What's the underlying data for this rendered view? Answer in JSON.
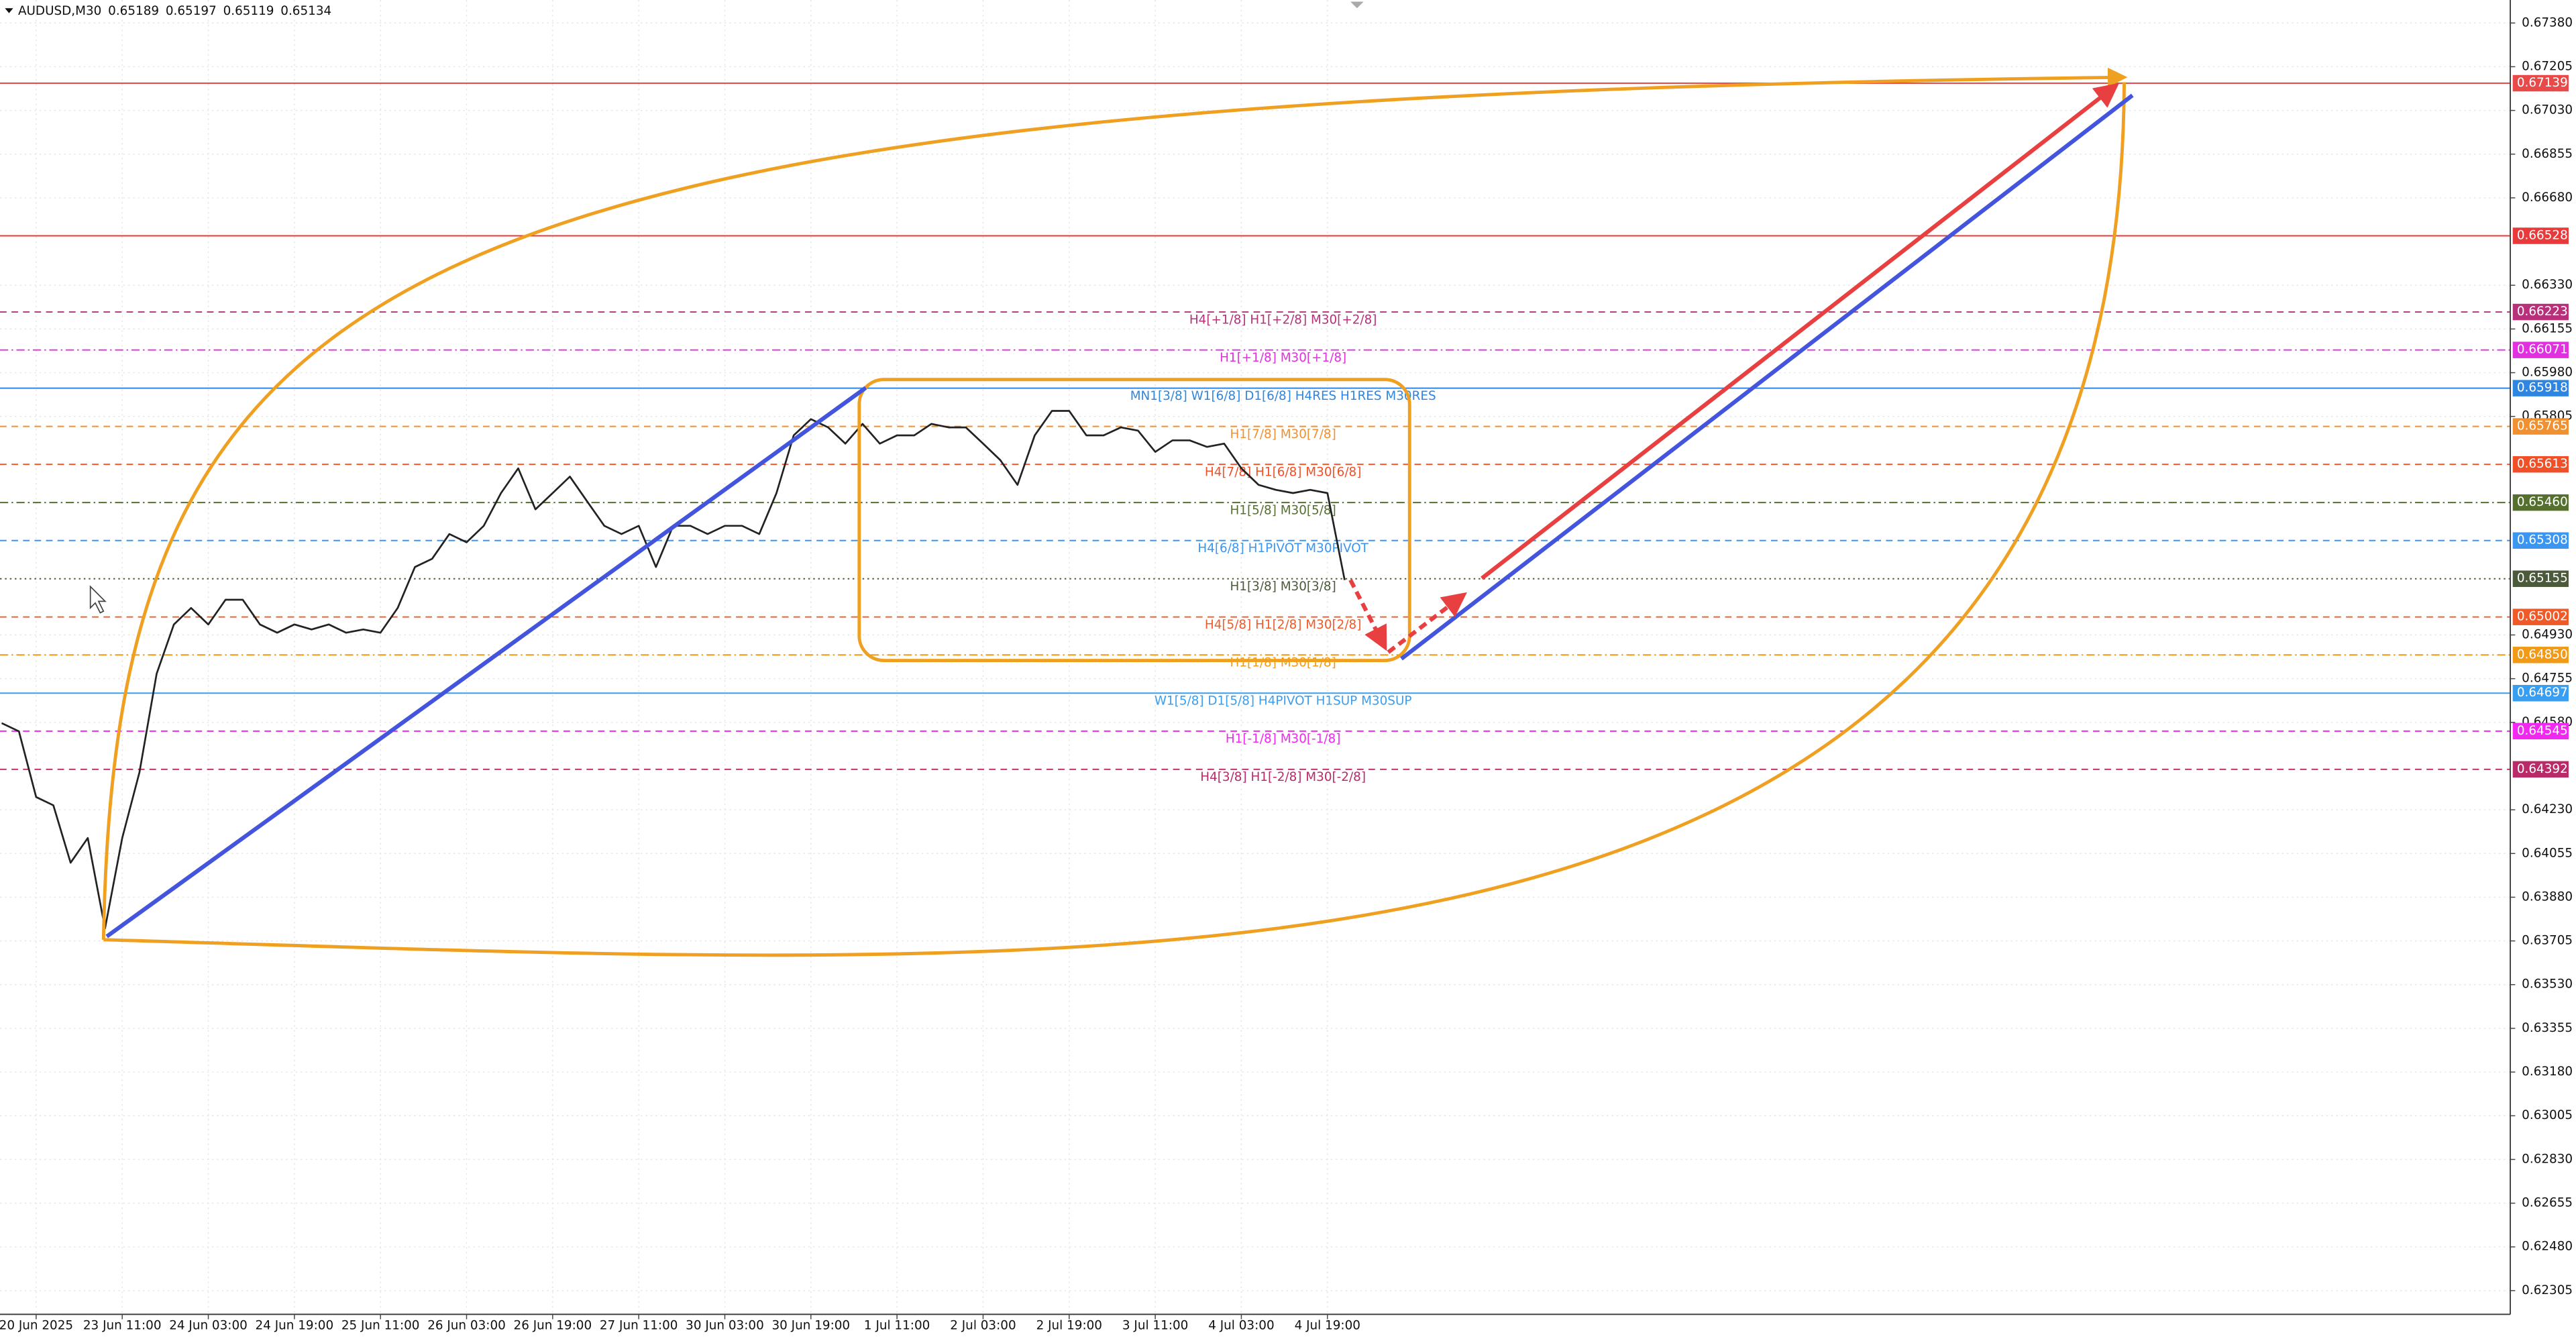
{
  "chart_data": {
    "type": "line",
    "title": "AUDUSD,M30",
    "quote": [
      0.65189,
      0.65197,
      0.65119,
      0.65134
    ],
    "color": "#222222",
    "grid": true,
    "ylim": [
      0.6221,
      0.67472
    ],
    "yticks": [
      {
        "value": 0.6738,
        "label": "0.67380"
      },
      0.67205,
      {
        "value": 0.6703,
        "label": "0.67030"
      },
      0.66855,
      {
        "value": 0.6668,
        "label": "0.66680"
      },
      {
        "value": 0.6633,
        "label": "0.66330"
      },
      0.66155,
      {
        "value": 0.6598,
        "label": "0.65980"
      },
      0.65805,
      {
        "value": 0.6493,
        "label": "0.64930"
      },
      0.64755,
      {
        "value": 0.6458,
        "label": "0.64580"
      },
      {
        "value": 0.6423,
        "label": "0.64230"
      },
      0.64055,
      {
        "value": 0.6388,
        "label": "0.63880"
      },
      0.63705,
      {
        "value": 0.6353,
        "label": "0.63530"
      },
      0.63355,
      {
        "value": 0.6318,
        "label": "0.63180"
      },
      0.63005,
      {
        "value": 0.6283,
        "label": "0.62830"
      },
      0.62655,
      {
        "value": 0.6248,
        "label": "0.62480"
      },
      0.62305
    ],
    "categories": [
      null,
      null,
      "20 Jun 2025",
      null,
      null,
      null,
      null,
      "23 Jun 11:00",
      null,
      null,
      null,
      null,
      "24 Jun 03:00",
      null,
      null,
      null,
      null,
      "24 Jun 19:00",
      null,
      null,
      null,
      null,
      "25 Jun 11:00",
      null,
      null,
      null,
      null,
      "26 Jun 03:00",
      null,
      null,
      null,
      null,
      "26 Jun 19:00",
      null,
      null,
      null,
      null,
      "27 Jun 11:00",
      null,
      null,
      null,
      null,
      "30 Jun 03:00",
      null,
      null,
      null,
      null,
      "30 Jun 19:00",
      null,
      null,
      null,
      null,
      "1 Jul 11:00",
      null,
      null,
      null,
      null,
      "2 Jul 03:00",
      null,
      null,
      null,
      null,
      "2 Jul 19:00",
      null,
      null,
      null,
      null,
      "3 Jul 11:00",
      null,
      null,
      null,
      null,
      "4 Jul 03:00",
      null,
      null,
      null,
      null,
      "4 Jul 19:00",
      null
    ],
    "values": [
      0.64577,
      0.64544,
      0.64281,
      0.64248,
      0.64018,
      0.64117,
      0.63755,
      0.64117,
      0.6438,
      0.64775,
      0.64972,
      0.65038,
      0.64972,
      0.65071,
      0.65071,
      0.64972,
      0.64939,
      0.64972,
      0.64952,
      0.64972,
      0.64939,
      0.64952,
      0.64939,
      0.65038,
      0.65202,
      0.65235,
      0.65334,
      0.65301,
      0.65367,
      0.65498,
      0.65597,
      0.65433,
      0.65498,
      0.65564,
      0.65465,
      0.65367,
      0.65334,
      0.65367,
      0.65202,
      0.65367,
      0.65367,
      0.65334,
      0.65367,
      0.65367,
      0.65334,
      0.65498,
      0.65729,
      0.65794,
      0.65761,
      0.65696,
      0.65775,
      0.65696,
      0.65729,
      0.65729,
      0.65775,
      0.65761,
      0.65761,
      0.65696,
      0.6563,
      0.65531,
      0.65729,
      0.65827,
      0.65827,
      0.65729,
      0.65729,
      0.65761,
      0.65748,
      0.65663,
      0.65709,
      0.65709,
      0.65683,
      0.65696,
      0.65597,
      0.65531,
      0.65511,
      0.65498,
      0.65511,
      0.65498,
      0.6515
    ],
    "levels": {
      "values": [
        0.67139,
        0.66528,
        0.66223,
        0.66071,
        0.65918,
        0.65765,
        0.65613,
        0.6546,
        0.65308,
        0.65155,
        0.65002,
        0.6485,
        0.64697,
        0.64545,
        0.64392
      ],
      "value_labels": [
        "0.67139",
        "0.66528",
        "0.66223",
        "0.66071",
        "0.65918",
        "0.65765",
        "0.65613",
        "0.65460",
        "0.65308",
        "0.65155",
        "0.65002",
        "0.64850",
        "0.64697",
        "0.64545",
        "0.64392"
      ],
      "names": [
        null,
        null,
        "H4[+1/8] H1[+2/8] M30[+2/8]",
        "H1[+1/8] M30[+1/8]",
        "MN1[3/8] W1[6/8] D1[6/8] H4RES H1RES M30RES",
        "H1[7/8] M30[7/8]",
        "H4[7/8] H1[6/8] M30[6/8]",
        "H1[5/8] M30[5/8]",
        "H4[6/8] H1PIVOT M30PIVOT",
        "H1[3/8] M30[3/8]",
        "H4[5/8] H1[2/8] M30[2/8]",
        "H1[1/8] M30[1/8]",
        "W1[5/8] D1[5/8] H4PIVOT H1SUP M30SUP",
        "H1[-1/8] M30[-1/8]",
        "H4[3/8] H1[-2/8] M30[-2/8]"
      ],
      "colors": [
        "#e84a4a",
        "#e83a3a",
        "#b8307a",
        "#e030e0",
        "#2f86e0",
        "#f09030",
        "#f05028",
        "#55702e",
        "#3a96f0",
        "#4a5a3a",
        "#f05a28",
        "#f09a18",
        "#3a9ef0",
        "#f028f0",
        "#b82a68"
      ],
      "styles": [
        "solid",
        "solid",
        "dash",
        "dashdot",
        "solid",
        "dash",
        "dash",
        "dashdot",
        "dash",
        "dot",
        "dash",
        "dashdot",
        "solid",
        "dash",
        "dash"
      ]
    }
  }
}
